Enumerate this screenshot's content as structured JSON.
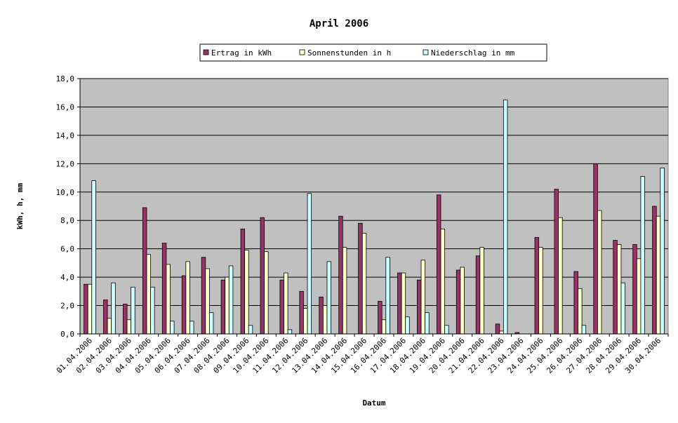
{
  "chart_data": {
    "type": "bar",
    "title": "April 2006",
    "xlabel": "Datum",
    "ylabel": "kWh, h, mm",
    "ylim": [
      0,
      18
    ],
    "yticks": [
      "0,0",
      "2,0",
      "4,0",
      "6,0",
      "8,0",
      "10,0",
      "12,0",
      "14,0",
      "16,0",
      "18,0"
    ],
    "grid": true,
    "legend_position": "top",
    "categories": [
      "01.04.2006",
      "02.04.2006",
      "03.04.2006",
      "04.04.2006",
      "05.04.2006",
      "06.04.2006",
      "07.04.2006",
      "08.04.2006",
      "09.04.2006",
      "10.04.2006",
      "11.04.2006",
      "12.04.2006",
      "13.04.2006",
      "14.04.2006",
      "15.04.2006",
      "16.04.2006",
      "17.04.2006",
      "18.04.2006",
      "19.04.2006",
      "20.04.2006",
      "21.04.2006",
      "22.04.2006",
      "23.04.2006",
      "24.04.2006",
      "25.04.2006",
      "26.04.2006",
      "27.04.2006",
      "28.04.2006",
      "29.04.2006",
      "30.04.2006"
    ],
    "series": [
      {
        "name": "Ertrag in kWh",
        "color": "#993366",
        "values": [
          3.5,
          2.4,
          2.1,
          8.9,
          6.4,
          4.1,
          5.4,
          3.8,
          7.4,
          8.2,
          3.8,
          3.0,
          2.6,
          8.3,
          7.8,
          2.3,
          4.3,
          3.8,
          9.8,
          4.5,
          5.5,
          0.7,
          0.1,
          6.8,
          10.2,
          4.4,
          12.0,
          6.6,
          6.3,
          9.0
        ]
      },
      {
        "name": "Sonnenstunden in h",
        "color": "#FFFFCC",
        "values": [
          3.5,
          1.1,
          1.0,
          5.6,
          4.9,
          5.1,
          4.6,
          4.0,
          5.9,
          5.8,
          4.3,
          1.8,
          2.0,
          6.1,
          7.1,
          1.0,
          4.3,
          5.2,
          7.4,
          4.7,
          6.1,
          0.2,
          0.0,
          6.1,
          8.2,
          3.2,
          8.7,
          6.3,
          5.3,
          8.3
        ]
      },
      {
        "name": "Niederschlag in mm",
        "color": "#CCFFFF",
        "values": [
          10.8,
          3.6,
          3.3,
          3.3,
          0.9,
          0.9,
          1.5,
          4.8,
          0.6,
          0.0,
          0.3,
          9.9,
          5.1,
          0.0,
          0.0,
          5.4,
          1.2,
          1.5,
          0.6,
          0.0,
          0.0,
          16.5,
          0.0,
          0.0,
          0.0,
          0.6,
          0.0,
          3.6,
          11.1,
          11.7
        ]
      }
    ]
  }
}
